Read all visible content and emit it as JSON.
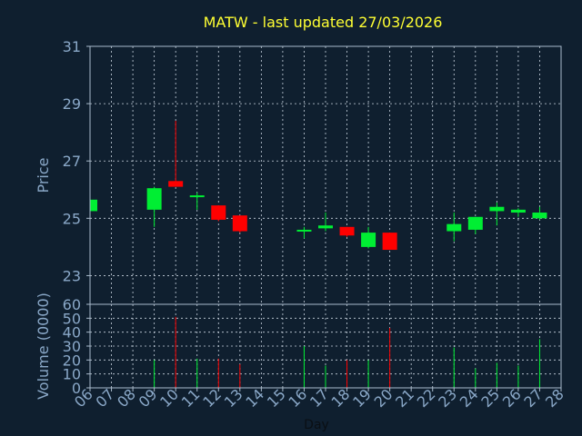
{
  "chart_data": {
    "type": "candlestick",
    "title": "MATW - last updated 27/03/2026",
    "xlabel": "Day",
    "categories": [
      "06",
      "07",
      "08",
      "09",
      "10",
      "11",
      "12",
      "13",
      "14",
      "15",
      "16",
      "17",
      "18",
      "19",
      "20",
      "21",
      "22",
      "23",
      "24",
      "25",
      "26",
      "27",
      "28"
    ],
    "price_panel": {
      "ylabel": "Price",
      "ylim": [
        22,
        31
      ],
      "yticks": [
        23,
        25,
        27,
        29,
        31
      ],
      "grid": true
    },
    "volume_panel": {
      "ylabel": "Volume (0000)",
      "ylim": [
        0,
        60
      ],
      "yticks": [
        0,
        10,
        20,
        30,
        40,
        50,
        60
      ],
      "grid": true
    },
    "candles": [
      {
        "day": "06",
        "open": 25.25,
        "high": 25.65,
        "low": 25.25,
        "close": 25.65,
        "volume": 0
      },
      {
        "day": "09",
        "open": 25.3,
        "high": 26.1,
        "low": 24.7,
        "close": 26.05,
        "volume": 20
      },
      {
        "day": "10",
        "open": 26.3,
        "high": 28.4,
        "low": 26.1,
        "close": 26.1,
        "volume": 51
      },
      {
        "day": "11",
        "open": 25.8,
        "high": 25.9,
        "low": 25.3,
        "close": 25.8,
        "volume": 21
      },
      {
        "day": "12",
        "open": 25.45,
        "high": 25.45,
        "low": 24.9,
        "close": 24.95,
        "volume": 21
      },
      {
        "day": "13",
        "open": 25.1,
        "high": 25.1,
        "low": 24.5,
        "close": 24.55,
        "volume": 17
      },
      {
        "day": "16",
        "open": 24.6,
        "high": 24.7,
        "low": 24.3,
        "close": 24.6,
        "volume": 30
      },
      {
        "day": "17",
        "open": 24.65,
        "high": 25.2,
        "low": 24.55,
        "close": 24.75,
        "volume": 16
      },
      {
        "day": "18",
        "open": 24.7,
        "high": 24.7,
        "low": 24.35,
        "close": 24.4,
        "volume": 20
      },
      {
        "day": "19",
        "open": 24.0,
        "high": 24.7,
        "low": 23.95,
        "close": 24.5,
        "volume": 20
      },
      {
        "day": "20",
        "open": 24.5,
        "high": 24.5,
        "low": 23.9,
        "close": 23.9,
        "volume": 43
      },
      {
        "day": "23",
        "open": 24.55,
        "high": 25.2,
        "low": 24.2,
        "close": 24.8,
        "volume": 29
      },
      {
        "day": "24",
        "open": 24.6,
        "high": 25.05,
        "low": 24.45,
        "close": 25.05,
        "volume": 14
      },
      {
        "day": "25",
        "open": 25.25,
        "high": 25.55,
        "low": 24.75,
        "close": 25.4,
        "volume": 18
      },
      {
        "day": "26",
        "open": 25.2,
        "high": 25.35,
        "low": 25.05,
        "close": 25.3,
        "volume": 16
      },
      {
        "day": "27",
        "open": 25.0,
        "high": 25.4,
        "low": 24.95,
        "close": 25.2,
        "volume": 35
      }
    ],
    "colors": {
      "up": "#00ee33",
      "down": "#ff0000",
      "background": "#0f1f2f",
      "title": "#ffff33",
      "axis_text": "#8aa8c8"
    }
  }
}
